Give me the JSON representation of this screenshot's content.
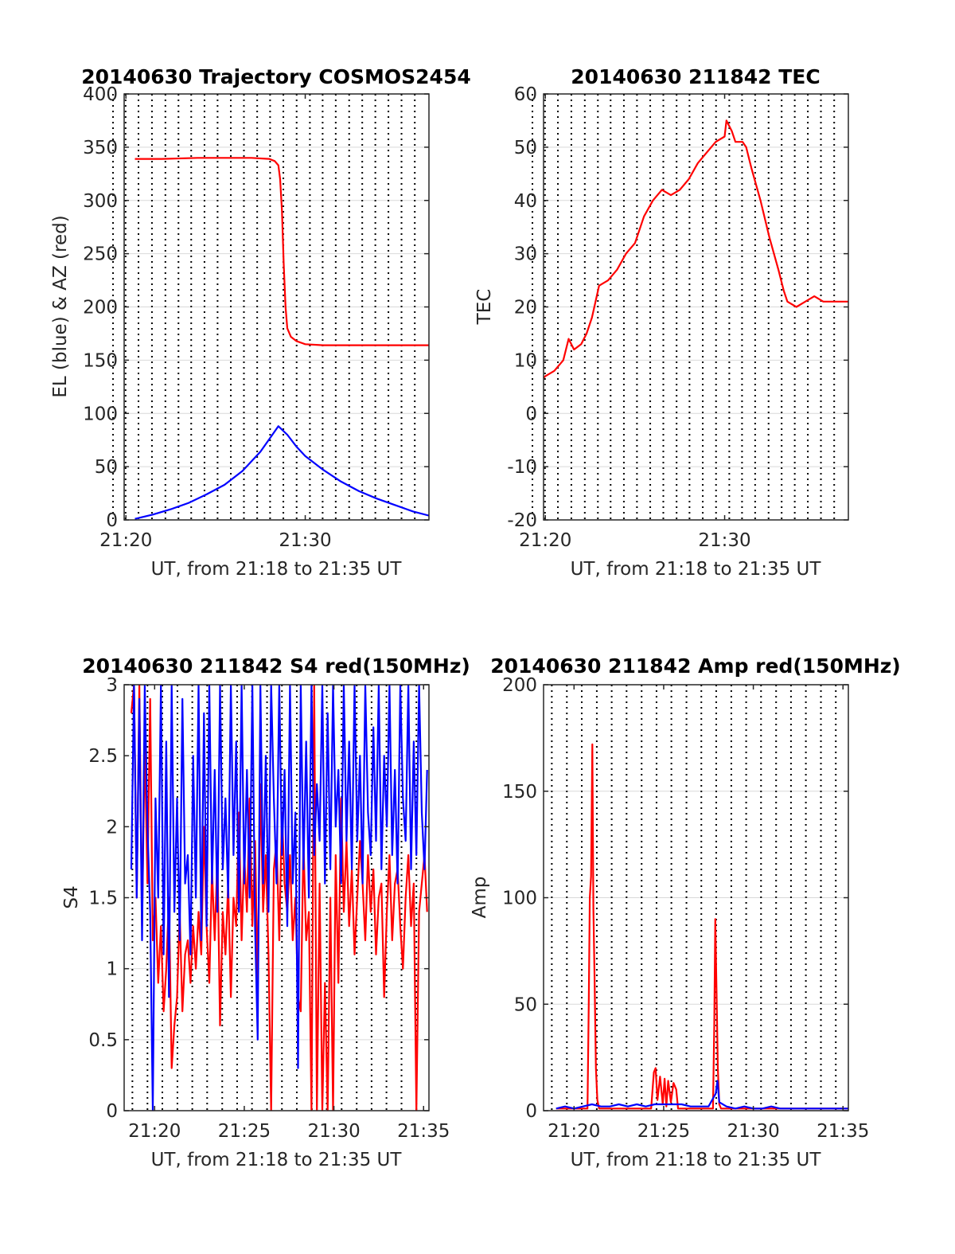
{
  "figure": {
    "background": "#ffffff"
  },
  "colors": {
    "red": "#ff0000",
    "blue": "#0000ff",
    "grid": "#d9d9d9",
    "axis": "#262626"
  },
  "chart_data": [
    {
      "id": "traj",
      "type": "line",
      "title": "20140630 Trajectory COSMOS2454",
      "xlabel": "UT, from 21:18 to 21:35 UT",
      "ylabel": "EL (blue) & AZ (red)",
      "xlim": [
        21.9,
        38.9
      ],
      "ylim": [
        0,
        400
      ],
      "xticks": [
        {
          "value": 22,
          "label": "21:20"
        },
        {
          "value": 32,
          "label": "21:30"
        }
      ],
      "yticks": [
        {
          "value": 0,
          "label": "0"
        },
        {
          "value": 50,
          "label": "50"
        },
        {
          "value": 100,
          "label": "100"
        },
        {
          "value": 150,
          "label": "150"
        },
        {
          "value": 200,
          "label": "200"
        },
        {
          "value": 250,
          "label": "250"
        },
        {
          "value": 300,
          "label": "300"
        },
        {
          "value": 350,
          "label": "350"
        },
        {
          "value": 400,
          "label": "400"
        }
      ],
      "vgrid": [
        21.28,
        21.98,
        22.7,
        23.45,
        24.2,
        24.93,
        25.64,
        26.38,
        27.11,
        27.85,
        28.58,
        29.32,
        30.04,
        30.78,
        31.52,
        32.26,
        32.97,
        33.7,
        34.45,
        35.18,
        35.91,
        36.64,
        37.37,
        38.11
      ],
      "series": [
        {
          "color": "#ff0000",
          "x": [
            22.5,
            24,
            26,
            28,
            29,
            30,
            30.3,
            30.5,
            30.6,
            30.7,
            30.8,
            30.9,
            31,
            31.2,
            31.5,
            32,
            33,
            35,
            37,
            38.9
          ],
          "y": [
            339,
            339,
            340,
            340,
            340,
            339,
            337,
            333,
            320,
            290,
            240,
            200,
            180,
            172,
            168,
            165,
            164,
            164,
            164,
            164
          ]
        },
        {
          "color": "#0000ff",
          "x": [
            22.5,
            23.5,
            24.5,
            25.5,
            26.5,
            27.5,
            28.5,
            29.5,
            30,
            30.5,
            31,
            31.5,
            32,
            33,
            34,
            35,
            36,
            37,
            38,
            38.9
          ],
          "y": [
            1,
            5,
            10,
            16,
            24,
            33,
            46,
            64,
            76,
            88,
            80,
            69,
            60,
            47,
            36,
            27,
            20,
            14,
            8,
            4
          ]
        }
      ]
    },
    {
      "id": "tec",
      "type": "line",
      "title": "20140630 211842 TEC",
      "xlabel": "UT, from 21:18 to 21:35 UT",
      "ylabel": "TEC",
      "xlim": [
        21.9,
        38.9
      ],
      "ylim": [
        -20,
        60
      ],
      "xticks": [
        {
          "value": 22,
          "label": "21:20"
        },
        {
          "value": 32,
          "label": "21:30"
        }
      ],
      "yticks": [
        {
          "value": -20,
          "label": "-20"
        },
        {
          "value": -10,
          "label": "-10"
        },
        {
          "value": 0,
          "label": "0"
        },
        {
          "value": 10,
          "label": "10"
        },
        {
          "value": 20,
          "label": "20"
        },
        {
          "value": 30,
          "label": "30"
        },
        {
          "value": 40,
          "label": "40"
        },
        {
          "value": 50,
          "label": "50"
        },
        {
          "value": 60,
          "label": "60"
        }
      ],
      "vgrid": [
        21.28,
        21.98,
        22.7,
        23.45,
        24.2,
        24.93,
        25.64,
        26.38,
        27.11,
        27.85,
        28.58,
        29.32,
        30.04,
        30.78,
        31.52,
        32.26,
        32.97,
        33.7,
        34.45,
        35.18,
        35.91,
        36.64,
        37.37,
        38.11
      ],
      "series": [
        {
          "color": "#ff0000",
          "x": [
            21.3,
            21.5,
            21.7,
            22,
            22.5,
            23,
            23.3,
            23.6,
            24,
            24.3,
            24.6,
            25,
            25.5,
            26,
            26.5,
            27,
            27.3,
            27.5,
            28,
            28.5,
            29,
            29.5,
            30,
            30.5,
            31,
            31.5,
            32,
            32.1,
            32.4,
            32.6,
            33,
            33.2,
            33.5,
            34,
            34.5,
            35,
            35.3,
            35.5,
            36,
            36.5,
            37,
            37.5,
            38,
            38.5,
            38.9
          ],
          "y": [
            0,
            4,
            6,
            7,
            8,
            10,
            14,
            12,
            13,
            15,
            18,
            24,
            25,
            27,
            30,
            32,
            35,
            37,
            40,
            42,
            41,
            42,
            44,
            47,
            49,
            51,
            52,
            55,
            53,
            51,
            51,
            50,
            46,
            40,
            33,
            27,
            23,
            21,
            20,
            21,
            22,
            21,
            21,
            21,
            21
          ]
        }
      ]
    },
    {
      "id": "s4",
      "type": "line",
      "title": "20140630 211842 S4 red(150MHz)",
      "xlabel": "UT, from 21:18 to 21:35 UT",
      "ylabel": "S4",
      "xlim": [
        18.3,
        35.3
      ],
      "ylim": [
        0,
        3
      ],
      "xticks": [
        {
          "value": 20,
          "label": "21:20"
        },
        {
          "value": 25,
          "label": "21:25"
        },
        {
          "value": 30,
          "label": "21:30"
        },
        {
          "value": 35,
          "label": "21:35"
        }
      ],
      "yticks": [
        {
          "value": 0,
          "label": "0"
        },
        {
          "value": 0.5,
          "label": "0.5"
        },
        {
          "value": 1,
          "label": "1"
        },
        {
          "value": 1.5,
          "label": "1.5"
        },
        {
          "value": 2,
          "label": "2"
        },
        {
          "value": 2.5,
          "label": "2.5"
        },
        {
          "value": 3,
          "label": "3"
        }
      ],
      "vgrid": [
        18.76,
        19.6,
        20.43,
        21.27,
        22.1,
        22.93,
        23.77,
        24.6,
        25.43,
        26.27,
        27.1,
        27.93,
        28.77,
        29.6,
        30.43,
        31.27,
        32.1,
        32.93,
        33.77,
        34.6
      ],
      "series": [
        {
          "color": "#ff0000",
          "x": [
            18.7,
            18.85,
            19,
            19.15,
            19.3,
            19.45,
            19.6,
            19.75,
            19.9,
            20.05,
            20.2,
            20.35,
            20.5,
            20.65,
            20.8,
            20.95,
            21.1,
            21.25,
            21.4,
            21.55,
            21.7,
            21.85,
            22,
            22.15,
            22.3,
            22.45,
            22.6,
            22.75,
            22.9,
            23.05,
            23.2,
            23.35,
            23.5,
            23.65,
            23.8,
            23.95,
            24.1,
            24.25,
            24.4,
            24.55,
            24.7,
            24.85,
            25,
            25.15,
            25.3,
            25.45,
            25.6,
            25.75,
            25.9,
            26.05,
            26.2,
            26.35,
            26.5,
            26.65,
            26.8,
            26.95,
            27.1,
            27.25,
            27.4,
            27.55,
            27.7,
            27.85,
            28,
            28.15,
            28.3,
            28.45,
            28.6,
            28.75,
            28.9,
            29.05,
            29.2,
            29.35,
            29.5,
            29.65,
            29.8,
            29.95,
            30.1,
            30.25,
            30.4,
            30.55,
            30.7,
            30.85,
            31,
            31.15,
            31.3,
            31.45,
            31.6,
            31.75,
            31.9,
            32.05,
            32.2,
            32.35,
            32.5,
            32.65,
            32.8,
            32.95,
            33.1,
            33.25,
            33.4,
            33.55,
            33.7,
            33.85,
            34,
            34.15,
            34.3,
            34.45,
            34.6,
            34.75,
            34.9,
            35.05,
            35.2
          ],
          "y": [
            2.8,
            3,
            1.5,
            3,
            1.3,
            2.6,
            1.6,
            2.9,
            1.2,
            1.5,
            0.9,
            1.3,
            0.7,
            1,
            1.5,
            0.3,
            0.6,
            0.8,
            1.4,
            0.7,
            1.1,
            1.2,
            0.9,
            1.3,
            1,
            1.4,
            1.1,
            2,
            1.3,
            0.9,
            1.7,
            1.2,
            1.8,
            0.6,
            1.4,
            1.1,
            1.6,
            0.8,
            1.5,
            1.3,
            2.1,
            1.2,
            1.8,
            1.4,
            2.2,
            1.3,
            1.9,
            0.9,
            2.3,
            1.4,
            1.8,
            1.1,
            0,
            1.7,
            1.9,
            1.2,
            2.1,
            1.6,
            1.4,
            1.8,
            1.2,
            1.5,
            0.8,
            0.7,
            1.9,
            1.2,
            1.4,
            0,
            3,
            0,
            1.6,
            0,
            0.9,
            0,
            1.5,
            0,
            1.8,
            0.9,
            2.2,
            1.4,
            1.9,
            1.3,
            1.7,
            1.1,
            1.5,
            1.9,
            1.6,
            1.2,
            1.8,
            1.4,
            1.7,
            1.1,
            1.5,
            1.6,
            0.8,
            1.4,
            1.8,
            1.2,
            1.6,
            1.7,
            1.3,
            1,
            1.5,
            1.8,
            1.3,
            1.6,
            0,
            1.4,
            1.6,
            1.8,
            1.4
          ]
        },
        {
          "color": "#0000ff",
          "x": [
            18.7,
            18.85,
            19,
            19.15,
            19.3,
            19.45,
            19.6,
            19.75,
            19.9,
            20.05,
            20.2,
            20.35,
            20.5,
            20.65,
            20.8,
            20.95,
            21.1,
            21.25,
            21.4,
            21.55,
            21.7,
            21.85,
            22,
            22.15,
            22.3,
            22.45,
            22.6,
            22.75,
            22.9,
            23.05,
            23.2,
            23.35,
            23.5,
            23.65,
            23.8,
            23.95,
            24.1,
            24.25,
            24.4,
            24.55,
            24.7,
            24.85,
            25,
            25.15,
            25.3,
            25.45,
            25.6,
            25.75,
            25.9,
            26.05,
            26.2,
            26.35,
            26.5,
            26.65,
            26.8,
            26.95,
            27.1,
            27.25,
            27.4,
            27.55,
            27.7,
            27.85,
            28,
            28.15,
            28.3,
            28.45,
            28.6,
            28.75,
            28.9,
            29.05,
            29.2,
            29.35,
            29.5,
            29.65,
            29.8,
            29.95,
            30.1,
            30.25,
            30.4,
            30.55,
            30.7,
            30.85,
            31,
            31.15,
            31.3,
            31.45,
            31.6,
            31.75,
            31.9,
            32.05,
            32.2,
            32.35,
            32.5,
            32.65,
            32.8,
            32.95,
            33.1,
            33.25,
            33.4,
            33.55,
            33.7,
            33.85,
            34,
            34.15,
            34.3,
            34.45,
            34.6,
            34.75,
            34.9,
            35.05,
            35.2
          ],
          "y": [
            1.7,
            3,
            1.5,
            2.9,
            1.2,
            3,
            2,
            1.4,
            0,
            2.2,
            1.5,
            3,
            1.1,
            2.6,
            0.8,
            3,
            1.4,
            2.2,
            1.2,
            2.9,
            1.6,
            1.8,
            1.1,
            2.5,
            1.5,
            3,
            1.2,
            2.8,
            1.3,
            3,
            1.6,
            2.4,
            1.4,
            3,
            1.7,
            2.2,
            1.5,
            3,
            1.8,
            2.6,
            1.4,
            3,
            1.6,
            2.4,
            1.5,
            3,
            1.3,
            0.5,
            3,
            1.6,
            2.5,
            1.4,
            3,
            2.2,
            1.6,
            3,
            1.8,
            2.4,
            1.3,
            3,
            1.6,
            2.1,
            0.3,
            3,
            1.7,
            2.6,
            1.5,
            3,
            1.8,
            2.3,
            1.9,
            3,
            1.6,
            2.8,
            1.7,
            3,
            2,
            2.4,
            1.6,
            3,
            1.9,
            2.6,
            1.7,
            3,
            1.9,
            2.5,
            1.6,
            3,
            2.1,
            1.8,
            2.7,
            1.9,
            3,
            1.7,
            2.5,
            2,
            3,
            1.8,
            2.4,
            1.6,
            3,
            2.2,
            1.9,
            3,
            1.7,
            2.6,
            1.8,
            3,
            2.1,
            1.7,
            2.4
          ]
        }
      ]
    },
    {
      "id": "amp",
      "type": "line",
      "title": "20140630 211842 Amp red(150MHz)",
      "xlabel": "UT, from 21:18 to 21:35 UT",
      "ylabel": "Amp",
      "xlim": [
        18.3,
        35.3
      ],
      "ylim": [
        0,
        200
      ],
      "xticks": [
        {
          "value": 20,
          "label": "21:20"
        },
        {
          "value": 25,
          "label": "21:25"
        },
        {
          "value": 30,
          "label": "21:30"
        },
        {
          "value": 35,
          "label": "21:35"
        }
      ],
      "yticks": [
        {
          "value": 0,
          "label": "0"
        },
        {
          "value": 50,
          "label": "50"
        },
        {
          "value": 100,
          "label": "100"
        },
        {
          "value": 150,
          "label": "150"
        },
        {
          "value": 200,
          "label": "200"
        }
      ],
      "vgrid": [
        18.76,
        19.6,
        20.43,
        21.27,
        22.1,
        22.93,
        23.77,
        24.6,
        25.43,
        26.27,
        27.1,
        27.93,
        28.77,
        29.6,
        30.43,
        31.27,
        32.1,
        32.93,
        33.77,
        34.6
      ],
      "series": [
        {
          "color": "#ff0000",
          "x": [
            19,
            20.3,
            20.75,
            20.82,
            20.88,
            20.95,
            21.02,
            21.08,
            21.15,
            21.22,
            21.3,
            21.4,
            21.5,
            22.5,
            24.3,
            24.45,
            24.55,
            24.65,
            24.8,
            24.95,
            25.05,
            25.15,
            25.25,
            25.4,
            25.55,
            25.7,
            25.8,
            27.5,
            27.75,
            27.82,
            27.88,
            27.95,
            28.02,
            28.1,
            28.2,
            29,
            35.3
          ],
          "y": [
            1,
            1,
            1,
            50,
            100,
            110,
            172,
            95,
            60,
            20,
            5,
            1,
            1,
            1,
            1,
            18,
            20,
            5,
            16,
            3,
            15,
            2,
            14,
            4,
            13,
            10,
            1,
            1,
            1,
            40,
            90,
            55,
            20,
            3,
            1,
            1,
            1
          ]
        },
        {
          "color": "#0000ff",
          "x": [
            19,
            19.5,
            20,
            20.5,
            21,
            21.5,
            22,
            22.5,
            23,
            23.5,
            24,
            24.5,
            25,
            25.5,
            26,
            26.5,
            27,
            27.5,
            27.9,
            28,
            28.1,
            28.5,
            29,
            29.5,
            30,
            30.5,
            31,
            31.5,
            32,
            32.5,
            33,
            33.5,
            34,
            34.5,
            35.3
          ],
          "y": [
            1,
            2,
            1,
            2,
            3,
            2,
            2,
            3,
            2,
            3,
            2,
            3,
            3,
            3,
            3,
            2,
            2,
            2,
            8,
            14,
            4,
            2,
            1,
            2,
            1,
            1,
            2,
            1,
            1,
            1,
            1,
            1,
            1,
            1,
            1
          ]
        }
      ]
    }
  ]
}
